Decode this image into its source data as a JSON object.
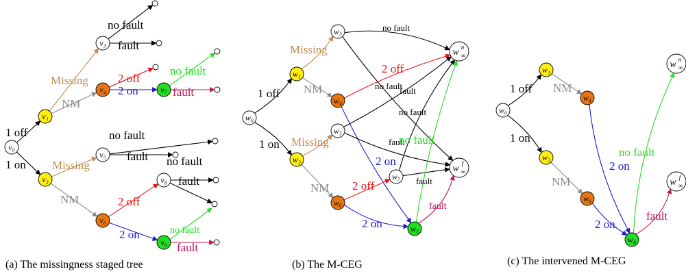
{
  "colors": {
    "black": "#000000",
    "missing": "#c08a4e",
    "nm": "#8a8a8a",
    "off": "#ee1111",
    "on": "#1a1acc",
    "nofault": "#22dd22",
    "fault": "#c0185a",
    "yellow": "#ffee11",
    "orange": "#e87511",
    "green": "#22dd22"
  },
  "captions": {
    "a": "(a) The missingness staged tree",
    "b": "(b) The M-CEG",
    "c": "(c) The intervened M-CEG"
  },
  "labels": {
    "one_off": "1 off",
    "one_on": "1 on",
    "missing": "Missing",
    "nm": "NM",
    "two_off": "2 off",
    "two_on": "2 on",
    "no_fault": "no fault",
    "fault": "fault"
  },
  "node_labels": {
    "v0": "v₀",
    "v1": "v₁",
    "v2": "v₂",
    "v3": "v₃",
    "v4": "v₄",
    "v5": "v₅",
    "v6": "v₆",
    "v7": "v₇",
    "v8": "v₈",
    "v9": "v₉",
    "w0": "w₀",
    "w1": "w₁",
    "w2": "w₂",
    "w3": "w₃",
    "w4": "w₄",
    "w5": "w₅",
    "w6": "w₆",
    "w7": "w₇",
    "w8": "w₈",
    "w_inf_n_base": "w",
    "w_inf_n_sub": "∞",
    "w_inf_n_sup": "n",
    "w_inf_f_base": "w",
    "w_inf_f_sub": "∞",
    "w_inf_f_sup": "f"
  }
}
